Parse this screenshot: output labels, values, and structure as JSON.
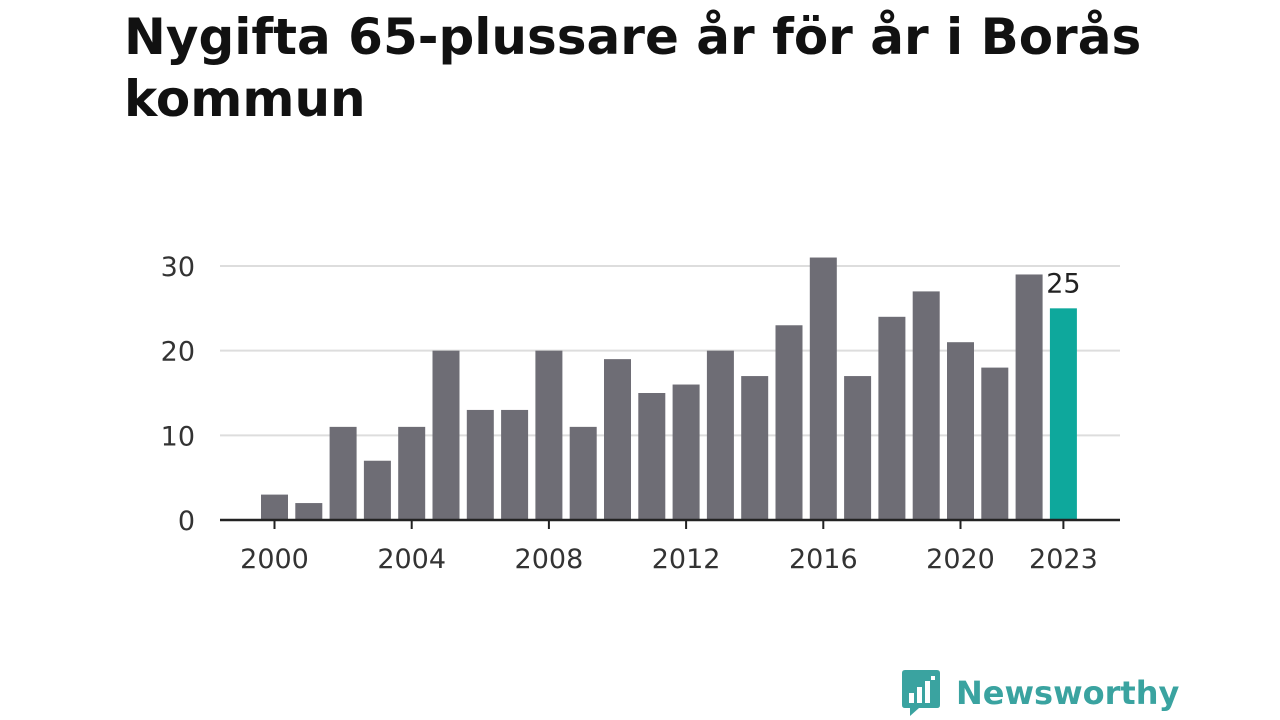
{
  "title": "Nygifta 65-plussare år för år i Borås kommun",
  "colors": {
    "bar": "#6e6d75",
    "highlight": "#0ea89c",
    "grid": "#dddddd",
    "axis": "#222222",
    "logo": "#3aa3a0"
  },
  "chart_data": {
    "type": "bar",
    "title": "Nygifta 65-plussare år för år i Borås kommun",
    "xlabel": "",
    "ylabel": "",
    "x": [
      2000,
      2001,
      2002,
      2003,
      2004,
      2005,
      2006,
      2007,
      2008,
      2009,
      2010,
      2011,
      2012,
      2013,
      2014,
      2015,
      2016,
      2017,
      2018,
      2019,
      2020,
      2021,
      2022,
      2023
    ],
    "values": [
      3,
      2,
      11,
      7,
      11,
      20,
      13,
      13,
      20,
      11,
      19,
      15,
      16,
      20,
      17,
      23,
      31,
      17,
      24,
      27,
      21,
      18,
      29,
      25
    ],
    "highlight_x": 2023,
    "highlight_label": "25",
    "ylim": [
      0,
      30
    ],
    "yticks": [
      "0",
      "10",
      "20",
      "30"
    ],
    "xticks": [
      "2000",
      "2004",
      "2008",
      "2012",
      "2016",
      "2020",
      "2023"
    ],
    "grid": true,
    "legend": "none"
  },
  "branding": {
    "logo_text": "Newsworthy",
    "logo_icon": "bar-chart-speech-bubble-icon"
  }
}
